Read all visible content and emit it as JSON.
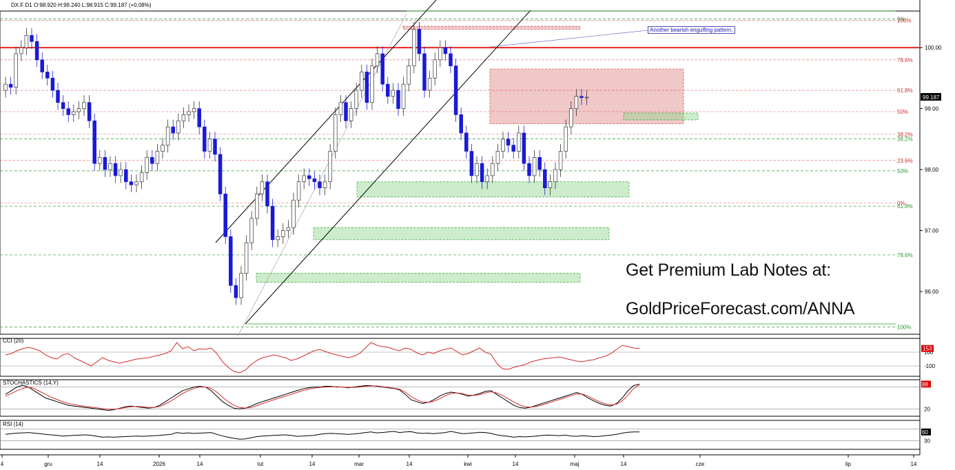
{
  "header": {
    "symbol": "DX.F",
    "timeframe": "D1",
    "ohlc": "O:98.920  H:99.240  L:98.915  C:99.187  (+0.08%)"
  },
  "promo": {
    "line1": "Get Premium Lab Notes at:",
    "line2": "GoldPriceForecast.com/ANNA"
  },
  "annotation": "Another bearish engulfing pattern.",
  "colors": {
    "bull": "#ffffff",
    "bear": "#1a1ad6",
    "resistance": "#e8241c",
    "zone_red": "#e59a9a",
    "zone_green": "#8fd48f",
    "fib_green": "#2a9a2a",
    "fib_red": "#d42a2a"
  },
  "chart_data": [
    {
      "type": "candlestick",
      "panel": "price",
      "symbol": "DX.F",
      "ylim": [
        95.3,
        100.6
      ],
      "y_ticks": [
        "100.00",
        "99.00",
        "98.00",
        "97.00",
        "96.00"
      ],
      "x_ticks": [
        "4",
        "gru",
        "14",
        "2026",
        "14",
        "lut",
        "14",
        "mar",
        "14",
        "kwi",
        "14",
        "maj",
        "14",
        "cze",
        "lip",
        "14"
      ],
      "last_price": "99.187",
      "closes": [
        99.4,
        99.35,
        99.9,
        100.0,
        100.2,
        100.1,
        99.8,
        99.6,
        99.5,
        99.3,
        99.1,
        99.0,
        98.9,
        98.95,
        99.0,
        99.1,
        98.8,
        98.1,
        98.2,
        98.0,
        98.1,
        97.9,
        98.0,
        97.8,
        97.75,
        97.8,
        97.95,
        98.2,
        98.1,
        98.3,
        98.4,
        98.7,
        98.6,
        98.8,
        98.9,
        98.95,
        99.0,
        98.7,
        98.3,
        98.5,
        98.25,
        97.6,
        96.9,
        96.1,
        95.9,
        96.3,
        96.8,
        97.2,
        97.6,
        97.8,
        97.4,
        96.85,
        96.9,
        97.0,
        97.05,
        97.5,
        97.8,
        97.9,
        97.85,
        97.8,
        97.7,
        97.8,
        98.3,
        98.9,
        99.1,
        98.8,
        99.0,
        99.3,
        99.6,
        99.1,
        99.7,
        99.9,
        99.4,
        99.2,
        99.3,
        99.0,
        99.4,
        99.7,
        100.3,
        99.9,
        99.3,
        99.5,
        99.8,
        100.0,
        99.9,
        99.7,
        98.9,
        98.6,
        98.3,
        97.9,
        98.1,
        97.8,
        97.9,
        98.1,
        98.3,
        98.5,
        98.4,
        98.3,
        98.6,
        98.1,
        97.9,
        98.2,
        98.0,
        97.7,
        97.8,
        98.0,
        98.3,
        98.7,
        99.0,
        99.2,
        99.18,
        99.187
      ],
      "zones": [
        {
          "kind": "resistance",
          "from": "kwi",
          "to": "maj",
          "low": 98.75,
          "high": 99.65
        },
        {
          "kind": "resistance",
          "from": "mar",
          "to": "kwi",
          "low": 100.3,
          "high": 100.35
        },
        {
          "kind": "support",
          "from": "mar",
          "to": "maj",
          "low": 97.55,
          "high": 97.8
        },
        {
          "kind": "support",
          "from": "lut",
          "to": "maj",
          "low": 96.85,
          "high": 97.05
        },
        {
          "kind": "support",
          "from": "lut",
          "to": "maj",
          "low": 96.15,
          "high": 96.3
        }
      ],
      "horizontal_levels": [
        {
          "value": 100.0,
          "label": "100.00",
          "color": "#e8241c"
        }
      ],
      "fibonacci_red": [
        {
          "label": "0%",
          "value": 97.45
        },
        {
          "label": "23.6%",
          "value": 98.15
        },
        {
          "label": "38.2%",
          "value": 98.58
        },
        {
          "label": "50%",
          "value": 98.95
        },
        {
          "label": "61.8%",
          "value": 99.3
        },
        {
          "label": "78.6%",
          "value": 99.8
        },
        {
          "label": "100%",
          "value": 100.45
        }
      ],
      "fibonacci_green": [
        {
          "label": "0%",
          "value": 100.47
        },
        {
          "label": "38.2%",
          "value": 98.55
        },
        {
          "label": "50%",
          "value": 97.98
        },
        {
          "label": "61.8%",
          "value": 97.4
        },
        {
          "label": "78.6%",
          "value": 96.6
        },
        {
          "label": "100%",
          "value": 95.42
        }
      ]
    },
    {
      "type": "line",
      "panel": "cci",
      "title": "CCI (20)",
      "ylim": [
        -250,
        300
      ],
      "y_ticks": [
        "100",
        "-100"
      ],
      "last_value": "153",
      "series": [
        {
          "values": [
            60,
            80,
            120,
            150,
            170,
            150,
            120,
            60,
            20,
            0,
            60,
            80,
            20,
            -20,
            -60,
            -100,
            -40,
            20,
            -20,
            -40,
            -60,
            -40,
            -20,
            0,
            10,
            20,
            40,
            60,
            80,
            120,
            240,
            150,
            180,
            120,
            150,
            140,
            160,
            80,
            -40,
            -120,
            -180,
            -200,
            -160,
            -80,
            -20,
            20,
            40,
            60,
            40,
            20,
            -20,
            0,
            40,
            80,
            120,
            140,
            110,
            80,
            60,
            40,
            20,
            40,
            80,
            160,
            240,
            200,
            180,
            170,
            140,
            120,
            160,
            140,
            90,
            60,
            100,
            80,
            120,
            140,
            160,
            110,
            60,
            80,
            120,
            160,
            100,
            70,
            -60,
            -140,
            -150,
            -120,
            -100,
            -80,
            -40,
            -20,
            0,
            10,
            20,
            30,
            10,
            -10,
            -30,
            -40,
            -20,
            -10,
            20,
            40,
            80,
            140,
            200,
            180,
            160,
            153
          ]
        }
      ]
    },
    {
      "type": "line",
      "panel": "stochastics",
      "title": "STOCHASTICS (14,Y)",
      "ylim": [
        0,
        100
      ],
      "y_ticks": [
        "20"
      ],
      "last_value": "88",
      "series": [
        {
          "values": [
            60,
            70,
            80,
            85,
            80,
            70,
            60,
            50,
            45,
            40,
            35,
            30,
            28,
            26,
            24,
            22,
            20,
            18,
            16,
            18,
            22,
            26,
            28,
            26,
            24,
            22,
            24,
            30,
            40,
            50,
            60,
            70,
            75,
            80,
            82,
            80,
            70,
            55,
            40,
            30,
            22,
            20,
            22,
            28,
            35,
            40,
            45,
            50,
            55,
            60,
            65,
            70,
            75,
            78,
            80,
            80,
            82,
            82,
            80,
            80,
            78,
            80,
            82,
            84,
            84,
            82,
            80,
            78,
            76,
            72,
            60,
            45,
            40,
            35,
            38,
            45,
            55,
            62,
            66,
            64,
            60,
            55,
            58,
            62,
            68,
            70,
            60,
            50,
            40,
            30,
            24,
            22,
            25,
            30,
            35,
            40,
            45,
            50,
            55,
            60,
            65,
            60,
            50,
            42,
            35,
            30,
            28,
            35,
            50,
            70,
            84,
            88
          ]
        },
        {
          "values": [
            55,
            62,
            70,
            76,
            80,
            76,
            68,
            60,
            52,
            46,
            40,
            35,
            32,
            29,
            27,
            25,
            23,
            21,
            19,
            19,
            21,
            24,
            26,
            27,
            26,
            24,
            24,
            27,
            34,
            42,
            52,
            62,
            70,
            76,
            80,
            80,
            76,
            66,
            52,
            40,
            30,
            24,
            22,
            24,
            29,
            35,
            40,
            45,
            50,
            55,
            60,
            65,
            70,
            74,
            77,
            79,
            80,
            81,
            81,
            80,
            79,
            79,
            80,
            82,
            83,
            83,
            81,
            79,
            77,
            74,
            66,
            54,
            45,
            39,
            38,
            41,
            48,
            56,
            62,
            64,
            62,
            58,
            57,
            59,
            64,
            67,
            64,
            57,
            48,
            39,
            31,
            26,
            25,
            27,
            31,
            36,
            41,
            46,
            51,
            56,
            61,
            61,
            55,
            47,
            40,
            34,
            31,
            33,
            42,
            58,
            76,
            86
          ]
        }
      ]
    },
    {
      "type": "line",
      "panel": "rsi",
      "title": "RSI (14)",
      "ylim": [
        0,
        100
      ],
      "y_ticks": [
        "30"
      ],
      "last_value": "60",
      "series": [
        {
          "values": [
            52,
            54,
            56,
            57,
            58,
            56,
            54,
            52,
            50,
            48,
            46,
            47,
            48,
            49,
            50,
            48,
            45,
            42,
            43,
            42,
            43,
            44,
            45,
            46,
            45,
            46,
            47,
            48,
            50,
            52,
            58,
            55,
            57,
            55,
            56,
            57,
            58,
            52,
            46,
            42,
            38,
            35,
            36,
            40,
            44,
            46,
            47,
            48,
            49,
            50,
            48,
            45,
            46,
            47,
            48,
            52,
            54,
            55,
            54,
            53,
            52,
            53,
            55,
            58,
            60,
            57,
            58,
            60,
            62,
            58,
            60,
            61,
            57,
            55,
            56,
            54,
            56,
            58,
            62,
            58,
            54,
            55,
            57,
            59,
            58,
            55,
            50,
            47,
            45,
            42,
            44,
            43,
            44,
            46,
            48,
            49,
            48,
            47,
            49,
            46,
            45,
            47,
            46,
            44,
            45,
            47,
            49,
            52,
            56,
            59,
            60,
            60
          ]
        }
      ]
    }
  ]
}
